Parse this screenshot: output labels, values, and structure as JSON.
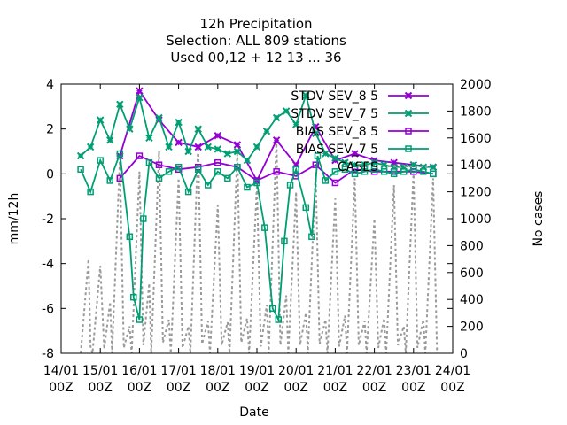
{
  "chart_data": {
    "type": "line",
    "title": [
      "12h Precipitation",
      "Selection: ALL     809 stations",
      "Used  00,12  + 12 13 ... 36"
    ],
    "xlabel": "Date",
    "ylabel": "mm/12h",
    "y2label": "No cases",
    "ylim": [
      -8,
      4
    ],
    "y2lim": [
      0,
      2000
    ],
    "y_ticks": [
      "-8",
      "-6",
      "-4",
      "-2",
      "0",
      "2",
      "4"
    ],
    "y2_ticks": [
      "0",
      "200",
      "400",
      "600",
      "800",
      "1000",
      "1200",
      "1400",
      "1600",
      "1800",
      "2000"
    ],
    "x_tick_labels": [
      [
        "14/01",
        "00Z"
      ],
      [
        "15/01",
        "00Z"
      ],
      [
        "16/01",
        "00Z"
      ],
      [
        "17/01",
        "00Z"
      ],
      [
        "18/01",
        "00Z"
      ],
      [
        "19/01",
        "00Z"
      ],
      [
        "20/01",
        "00Z"
      ],
      [
        "21/01",
        "00Z"
      ],
      [
        "22/01",
        "00Z"
      ],
      [
        "23/01",
        "00Z"
      ],
      [
        "24/01",
        "00Z"
      ]
    ],
    "xlim_days": [
      14,
      24
    ],
    "grid": false,
    "legend_position": "top-right",
    "series": [
      {
        "name": "STDV SEV_8 5",
        "axis": "y1",
        "color": "#9400d3",
        "marker": "x",
        "dash": false,
        "x": [
          15.5,
          16.0,
          16.5,
          17.0,
          17.5,
          18.0,
          18.5,
          19.0,
          19.5,
          20.0,
          20.5,
          21.0,
          21.5,
          22.0,
          22.5,
          23.0,
          23.5
        ],
        "y": [
          0.8,
          3.7,
          2.4,
          1.4,
          1.2,
          1.7,
          1.3,
          -0.3,
          1.5,
          0.4,
          2.1,
          0.6,
          0.9,
          0.6,
          0.5,
          0.4,
          0.3
        ]
      },
      {
        "name": "STDV SEV_7 5",
        "axis": "y1",
        "color": "#009e73",
        "marker": "x",
        "dash": false,
        "x": [
          14.5,
          14.75,
          15.0,
          15.25,
          15.5,
          15.75,
          16.0,
          16.25,
          16.5,
          16.75,
          17.0,
          17.25,
          17.5,
          17.75,
          18.0,
          18.25,
          18.5,
          18.75,
          19.0,
          19.25,
          19.5,
          19.75,
          20.0,
          20.25,
          20.5,
          20.75,
          21.0,
          21.25,
          21.5,
          21.75,
          22.0,
          22.25,
          22.5,
          22.75,
          23.0,
          23.25,
          23.5
        ],
        "y": [
          0.8,
          1.2,
          2.4,
          1.5,
          3.1,
          2.0,
          3.4,
          1.6,
          2.5,
          1.2,
          2.3,
          1.0,
          2.0,
          1.2,
          1.1,
          0.9,
          1.0,
          0.6,
          1.2,
          1.9,
          2.5,
          2.8,
          2.2,
          3.5,
          1.8,
          0.9,
          0.7,
          0.5,
          0.4,
          0.4,
          0.5,
          0.4,
          0.3,
          0.3,
          0.4,
          0.3,
          0.3
        ]
      },
      {
        "name": "BIAS SEV_8 5",
        "axis": "y1",
        "color": "#9400d3",
        "marker": "square",
        "dash": false,
        "x": [
          15.5,
          16.0,
          16.5,
          17.0,
          17.5,
          18.0,
          18.5,
          19.0,
          19.5,
          20.0,
          20.5,
          21.0,
          21.5,
          22.0,
          22.5,
          23.0,
          23.5
        ],
        "y": [
          -0.2,
          0.8,
          0.4,
          0.2,
          0.3,
          0.5,
          0.3,
          -0.3,
          0.1,
          -0.1,
          0.4,
          -0.4,
          0.2,
          0.1,
          0.1,
          0.1,
          0.0
        ]
      },
      {
        "name": "BIAS SEV_7 5",
        "axis": "y1",
        "color": "#009e73",
        "marker": "square",
        "dash": false,
        "x": [
          14.5,
          14.75,
          15.0,
          15.25,
          15.5,
          15.75,
          15.85,
          16.0,
          16.1,
          16.25,
          16.5,
          16.75,
          17.0,
          17.25,
          17.5,
          17.75,
          18.0,
          18.25,
          18.5,
          18.75,
          19.0,
          19.2,
          19.4,
          19.55,
          19.7,
          19.85,
          20.0,
          20.25,
          20.4,
          20.55,
          20.75,
          21.0,
          21.25,
          21.5,
          21.75,
          22.0,
          22.25,
          22.5,
          22.75,
          23.0,
          23.25,
          23.5
        ],
        "y": [
          0.2,
          -0.8,
          0.6,
          -0.3,
          0.9,
          -2.8,
          -5.5,
          -6.5,
          -2.0,
          0.5,
          -0.2,
          0.1,
          0.3,
          -0.8,
          0.2,
          -0.5,
          0.1,
          -0.2,
          0.3,
          -0.6,
          -0.4,
          -2.4,
          -6.0,
          -6.5,
          -3.0,
          -0.5,
          0.2,
          -1.5,
          -2.8,
          0.8,
          -0.3,
          0.1,
          0.2,
          0.0,
          0.1,
          0.2,
          0.1,
          0.0,
          0.1,
          0.2,
          0.1,
          0.0
        ]
      },
      {
        "name": "CASES",
        "axis": "y2",
        "color": "#9a9a9a",
        "marker": "none",
        "dash": true,
        "x": [
          14.5,
          14.7,
          14.75,
          14.8,
          15.0,
          15.1,
          15.25,
          15.3,
          15.5,
          15.6,
          15.75,
          15.8,
          16.0,
          16.1,
          16.25,
          16.3,
          16.5,
          16.6,
          16.75,
          16.8,
          17.0,
          17.1,
          17.25,
          17.3,
          17.5,
          17.6,
          17.75,
          17.8,
          18.0,
          18.1,
          18.25,
          18.3,
          18.5,
          18.6,
          18.75,
          18.8,
          19.0,
          19.1,
          19.25,
          19.3,
          19.5,
          19.6,
          19.75,
          19.8,
          20.0,
          20.1,
          20.25,
          20.3,
          20.5,
          20.6,
          20.75,
          20.8,
          21.0,
          21.1,
          21.25,
          21.3,
          21.5,
          21.6,
          21.75,
          21.8,
          22.0,
          22.1,
          22.25,
          22.3,
          22.5,
          22.6,
          22.75,
          22.8,
          23.0,
          23.1,
          23.25,
          23.3,
          23.5,
          23.6
        ],
        "y": [
          0,
          700,
          50,
          0,
          650,
          30,
          380,
          0,
          1450,
          40,
          200,
          0,
          1350,
          60,
          520,
          0,
          1500,
          80,
          250,
          0,
          1300,
          40,
          200,
          0,
          1550,
          70,
          240,
          0,
          1100,
          60,
          230,
          0,
          1500,
          80,
          260,
          0,
          1250,
          50,
          360,
          0,
          1600,
          60,
          430,
          0,
          1200,
          60,
          300,
          0,
          1350,
          70,
          250,
          0,
          1150,
          50,
          280,
          0,
          1300,
          60,
          240,
          0,
          1000,
          40,
          260,
          0,
          1250,
          60,
          200,
          0,
          1350,
          40,
          250,
          0,
          1300,
          0
        ]
      }
    ]
  }
}
